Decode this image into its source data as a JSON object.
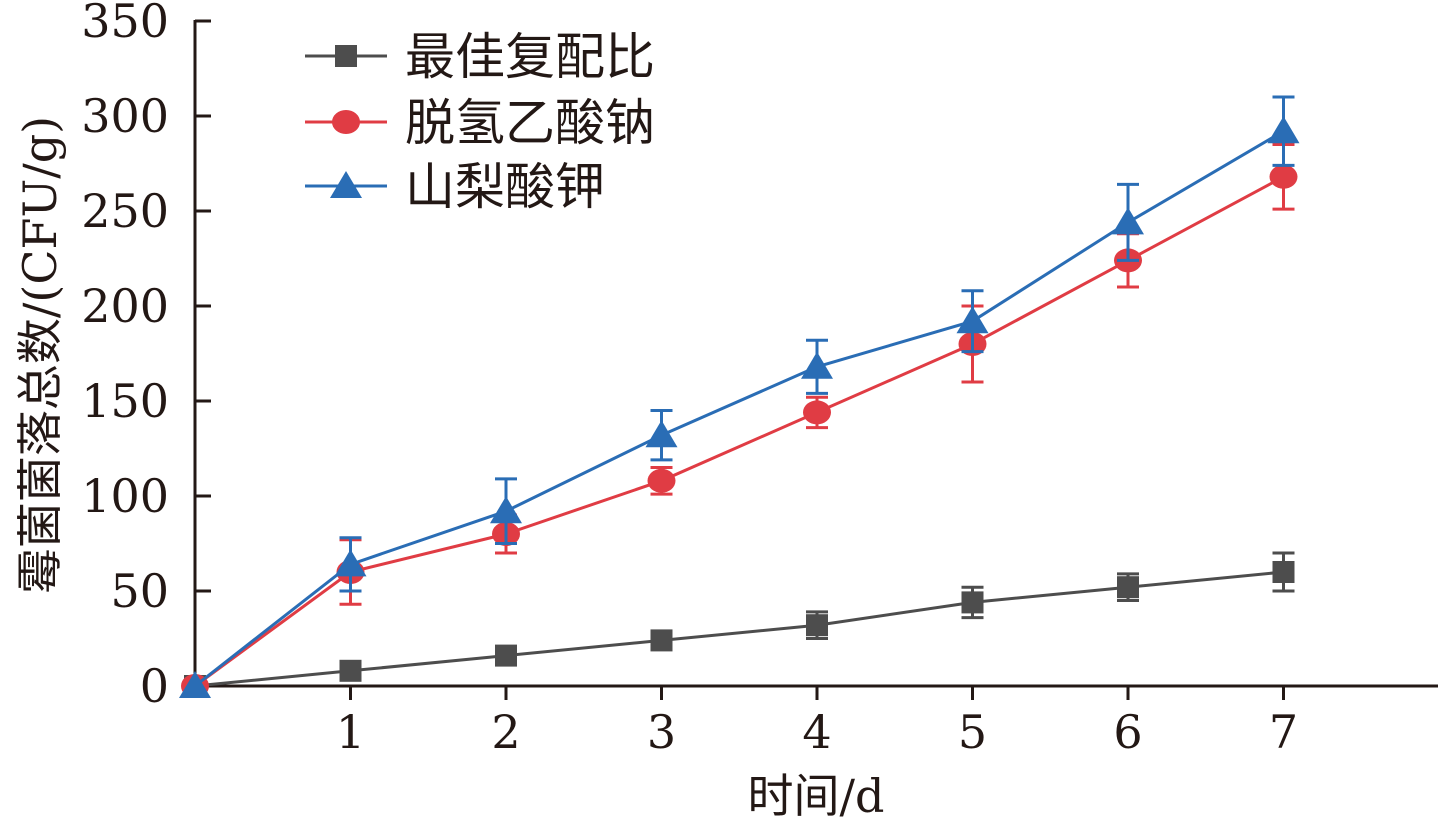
{
  "chart_data": {
    "type": "line",
    "title": "",
    "xlabel": "时间/d",
    "ylabel": "霉菌菌落总数/(CFU/g)",
    "x": [
      0,
      1,
      2,
      3,
      4,
      5,
      6,
      7
    ],
    "x_ticks": [
      "1",
      "2",
      "3",
      "4",
      "5",
      "6",
      "7"
    ],
    "y_ticks": [
      "0",
      "50",
      "100",
      "150",
      "200",
      "250",
      "300",
      "350"
    ],
    "xlim": [
      0,
      8
    ],
    "ylim": [
      0,
      350
    ],
    "grid": false,
    "legend_position": "top-left",
    "series": [
      {
        "name": "最佳复配比",
        "color": "#4d4d4d",
        "marker": "square",
        "values": [
          0,
          8,
          16,
          24,
          32,
          44,
          52,
          60
        ],
        "errors": [
          0,
          0,
          0,
          0,
          7,
          8,
          7,
          10
        ]
      },
      {
        "name": "脱氢乙酸钠",
        "color": "#e03c44",
        "marker": "circle",
        "values": [
          0,
          60,
          80,
          108,
          144,
          180,
          224,
          268
        ],
        "errors": [
          0,
          17,
          10,
          7,
          8,
          20,
          14,
          17
        ]
      },
      {
        "name": "山梨酸钾",
        "color": "#2a6db5",
        "marker": "triangle",
        "values": [
          0,
          64,
          92,
          132,
          168,
          192,
          244,
          292
        ],
        "errors": [
          0,
          14,
          17,
          13,
          14,
          16,
          20,
          18
        ]
      }
    ]
  }
}
